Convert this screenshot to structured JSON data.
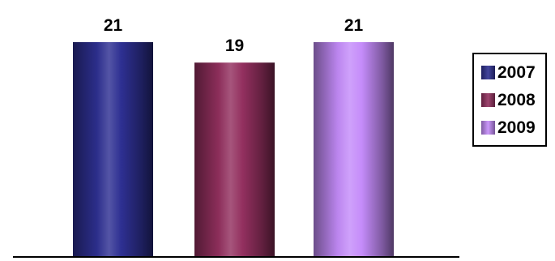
{
  "chart_data": {
    "type": "bar",
    "categories": [
      "2007",
      "2008",
      "2009"
    ],
    "series": [
      {
        "values": [
          21,
          19,
          21
        ]
      }
    ],
    "data_labels": [
      "21",
      "19",
      "21"
    ],
    "legend": {
      "placement": "right",
      "entries": [
        "2007",
        "2008",
        "2009"
      ]
    },
    "colors": [
      "#2e3092",
      "#93305f",
      "#c58cfa"
    ],
    "ylim": [
      0,
      21
    ],
    "grid": false,
    "title": "",
    "xlabel": "",
    "ylabel": ""
  }
}
